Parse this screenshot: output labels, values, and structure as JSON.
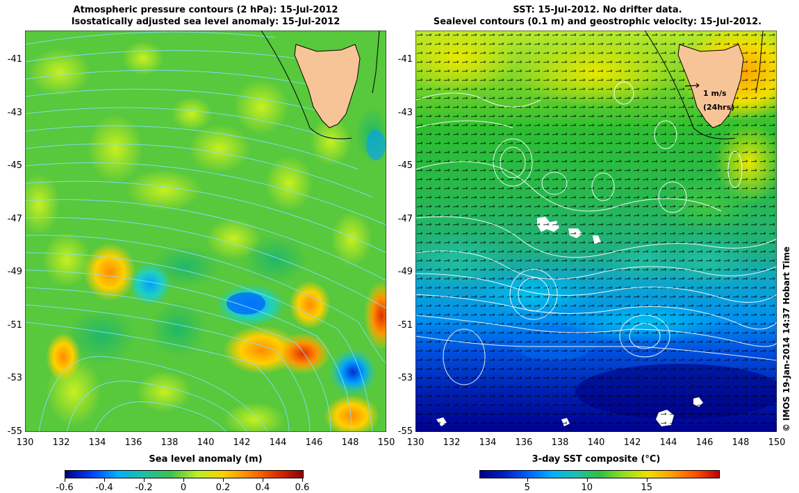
{
  "left_panel": {
    "title_line1": "Atmospheric pressure contours (2 hPa): 15-Jul-2012",
    "title_line2": "Isostatically adjusted sea level anomaly: 15-Jul-2012",
    "xlabel": "Sea level anomaly (m)",
    "colorbar_ticks": [
      "-0.6",
      "-0.4",
      "-0.2",
      "0",
      "0.2",
      "0.4",
      "0.6"
    ]
  },
  "right_panel": {
    "title_line1": "SST: 15-Jul-2012. No drifter data.",
    "title_line2": "Sealevel contours (0.1 m) and geostrophic velocity: 15-Jul-2012.",
    "xlabel": "3-day SST composite (°C)",
    "colorbar_ticks": [
      "5",
      "10",
      "15"
    ],
    "scale_label1": "1 m/s",
    "scale_label2": "(24hrs)"
  },
  "axes": {
    "x_ticks": [
      "130",
      "132",
      "134",
      "136",
      "138",
      "140",
      "142",
      "144",
      "146",
      "148",
      "150"
    ],
    "y_ticks": [
      "-41",
      "-43",
      "-45",
      "-47",
      "-49",
      "-51",
      "-53",
      "-55"
    ]
  },
  "credit": "© IMOS 19-Jan-2014 14:37 Hobart Time",
  "colors": {
    "land": "#f7c497",
    "ocean_mid": "#2dbf3f",
    "sla_colormap": [
      "#00007f",
      "#0050ff",
      "#00c8ff",
      "#3fc24a",
      "#b8f020",
      "#ffc000",
      "#ff4000",
      "#a00000"
    ],
    "sst_colormap": [
      "#00008f",
      "#0040ff",
      "#00c0ff",
      "#20c060",
      "#90e020",
      "#f0e000",
      "#ff8000",
      "#c00000"
    ]
  }
}
